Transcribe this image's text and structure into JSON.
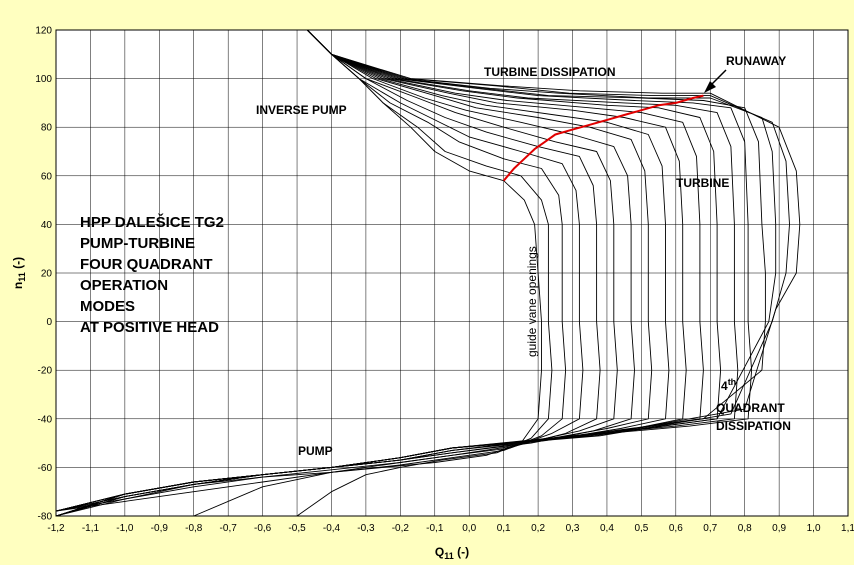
{
  "chart_data": {
    "type": "line",
    "title": "",
    "xlabel": "Q",
    "xlabel_sub": "11",
    "xlabel_unit": " (-)",
    "ylabel": "n",
    "ylabel_sub": "11",
    "ylabel_unit": " (-)",
    "xlim": [
      -1.2,
      1.1
    ],
    "ylim": [
      -80,
      120
    ],
    "grid": true,
    "x_ticks": [
      -1.2,
      -1.1,
      -1.0,
      -0.9,
      -0.8,
      -0.7,
      -0.6,
      -0.5,
      -0.4,
      -0.3,
      -0.2,
      -0.1,
      0.0,
      0.1,
      0.2,
      0.3,
      0.4,
      0.5,
      0.6,
      0.7,
      0.8,
      0.9,
      1.0,
      1.1
    ],
    "x_tick_labels": [
      "-1,2",
      "-1,1",
      "-1,0",
      "-0,9",
      "-0,8",
      "-0,7",
      "-0,6",
      "-0,5",
      "-0,4",
      "-0,3",
      "-0,2",
      "-0,1",
      "0,0",
      "0,1",
      "0,2",
      "0,3",
      "0,4",
      "0,5",
      "0,6",
      "0,7",
      "0,8",
      "0,9",
      "1,0",
      "1,1"
    ],
    "y_ticks": [
      -80,
      -60,
      -40,
      -20,
      0,
      20,
      40,
      60,
      80,
      100,
      120
    ],
    "y_tick_labels": [
      "-80",
      "-60",
      "-40",
      "-20",
      "0",
      "20",
      "40",
      "60",
      "80",
      "100",
      "120"
    ],
    "colors": {
      "background": "#ffffc0",
      "plot": "#ffffff",
      "curve": "#000000",
      "runaway": "#e00000"
    },
    "guide_vane_curves": [
      {
        "x": [
          -0.47,
          -0.4,
          -0.32,
          -0.25,
          -0.17,
          -0.1,
          0.0,
          0.1,
          0.16,
          0.19,
          0.2,
          0.21,
          0.21,
          0.2,
          0.15,
          0.05,
          -0.1,
          -0.25,
          -0.4,
          -0.6,
          -0.8,
          -1.0,
          -1.2
        ],
        "y": [
          120,
          110,
          100,
          90,
          80,
          70,
          62,
          58,
          50,
          40,
          20,
          0,
          -20,
          -40,
          -50,
          -55,
          -58,
          -60,
          -62,
          -64,
          -67,
          -72,
          -80
        ]
      },
      {
        "x": [
          -0.47,
          -0.4,
          -0.32,
          -0.25,
          -0.15,
          -0.07,
          0.05,
          0.15,
          0.21,
          0.23,
          0.23,
          0.23,
          0.24,
          0.23,
          0.18,
          0.08,
          -0.08,
          -0.2,
          -0.3,
          -0.4,
          -0.5
        ],
        "y": [
          120,
          110,
          100,
          90,
          80,
          70,
          64,
          60,
          50,
          40,
          20,
          0,
          -20,
          -40,
          -48,
          -54,
          -57,
          -60,
          -63,
          -70,
          -80
        ]
      },
      {
        "x": [
          -0.47,
          -0.4,
          -0.32,
          -0.23,
          -0.12,
          -0.03,
          0.1,
          0.21,
          0.26,
          0.27,
          0.27,
          0.27,
          0.28,
          0.27,
          0.21,
          0.1,
          -0.05,
          -0.2,
          -0.4,
          -0.6,
          -0.8,
          -1.0,
          -1.2
        ],
        "y": [
          120,
          110,
          100,
          90,
          82,
          74,
          67,
          63,
          52,
          40,
          20,
          0,
          -20,
          -40,
          -47,
          -53,
          -56,
          -59,
          -62,
          -66,
          -70,
          -74,
          -78
        ]
      },
      {
        "x": [
          -0.47,
          -0.4,
          -0.32,
          -0.2,
          -0.1,
          0.0,
          0.15,
          0.27,
          0.31,
          0.32,
          0.32,
          0.32,
          0.33,
          0.32,
          0.24,
          0.12,
          -0.05,
          -0.2,
          -0.4,
          -0.6,
          -0.8
        ],
        "y": [
          120,
          110,
          100,
          90,
          83,
          76,
          70,
          65,
          54,
          40,
          20,
          0,
          -20,
          -40,
          -46,
          -52,
          -55,
          -58,
          -62,
          -68,
          -80
        ]
      },
      {
        "x": [
          -0.47,
          -0.4,
          -0.3,
          -0.18,
          -0.07,
          0.05,
          0.2,
          0.32,
          0.36,
          0.37,
          0.37,
          0.37,
          0.38,
          0.37,
          0.28,
          0.14,
          -0.05,
          -0.2,
          -0.4,
          -0.6,
          -0.8,
          -1.0,
          -1.2
        ],
        "y": [
          120,
          110,
          100,
          91,
          84,
          78,
          72,
          68,
          56,
          40,
          20,
          0,
          -20,
          -40,
          -46,
          -51,
          -55,
          -58,
          -61,
          -64,
          -68,
          -73,
          -78
        ]
      },
      {
        "x": [
          -0.47,
          -0.4,
          -0.3,
          -0.15,
          -0.04,
          0.1,
          0.25,
          0.37,
          0.41,
          0.42,
          0.42,
          0.42,
          0.43,
          0.42,
          0.32,
          0.16,
          -0.05,
          -0.2,
          -0.4,
          -0.6,
          -0.8,
          -1.0,
          -1.2
        ],
        "y": [
          120,
          110,
          100,
          92,
          86,
          80,
          74,
          70,
          58,
          40,
          20,
          0,
          -20,
          -40,
          -45,
          -50,
          -54,
          -57,
          -60,
          -63,
          -67,
          -73,
          -80
        ]
      },
      {
        "x": [
          -0.47,
          -0.4,
          -0.28,
          -0.13,
          -0.01,
          0.15,
          0.3,
          0.42,
          0.46,
          0.47,
          0.47,
          0.47,
          0.48,
          0.47,
          0.36,
          0.18,
          -0.05,
          -0.2,
          -0.4,
          -0.6,
          -0.8,
          -1.0,
          -1.2
        ],
        "y": [
          120,
          110,
          100,
          92,
          87,
          82,
          77,
          72,
          60,
          40,
          20,
          0,
          -20,
          -40,
          -45,
          -50,
          -54,
          -57,
          -60,
          -63,
          -67,
          -72,
          -78
        ]
      },
      {
        "x": [
          -0.47,
          -0.4,
          -0.27,
          -0.1,
          0.02,
          0.2,
          0.35,
          0.47,
          0.51,
          0.52,
          0.52,
          0.52,
          0.53,
          0.52,
          0.4,
          0.2,
          -0.05,
          -0.2,
          -0.4,
          -0.6,
          -0.8,
          -1.0,
          -1.2
        ],
        "y": [
          120,
          110,
          100,
          93,
          88,
          84,
          80,
          75,
          62,
          40,
          20,
          0,
          -20,
          -40,
          -44,
          -49,
          -53,
          -57,
          -60,
          -63,
          -67,
          -72,
          -80
        ]
      },
      {
        "x": [
          -0.47,
          -0.4,
          -0.26,
          -0.08,
          0.05,
          0.25,
          0.4,
          0.52,
          0.56,
          0.57,
          0.57,
          0.57,
          0.58,
          0.57,
          0.44,
          0.22,
          -0.05,
          -0.2,
          -0.4,
          -0.6,
          -0.8,
          -1.0,
          -1.2
        ],
        "y": [
          120,
          110,
          100,
          93,
          89,
          85,
          82,
          77,
          64,
          40,
          20,
          0,
          -20,
          -40,
          -44,
          -49,
          -53,
          -57,
          -60,
          -63,
          -67,
          -72,
          -78
        ]
      },
      {
        "x": [
          -0.47,
          -0.4,
          -0.25,
          -0.06,
          0.08,
          0.3,
          0.45,
          0.57,
          0.61,
          0.62,
          0.62,
          0.62,
          0.63,
          0.62,
          0.48,
          0.24,
          -0.05,
          -0.2,
          -0.4,
          -0.6,
          -0.8,
          -1.0,
          -1.2
        ],
        "y": [
          120,
          110,
          100,
          94,
          90,
          87,
          84,
          80,
          66,
          40,
          20,
          0,
          -20,
          -40,
          -44,
          -48,
          -53,
          -57,
          -60,
          -63,
          -67,
          -72,
          -80
        ]
      },
      {
        "x": [
          -0.47,
          -0.4,
          -0.24,
          -0.04,
          0.11,
          0.35,
          0.5,
          0.62,
          0.66,
          0.67,
          0.67,
          0.67,
          0.68,
          0.67,
          0.52,
          0.26,
          -0.05,
          -0.2,
          -0.4,
          -0.6,
          -0.8,
          -1.0,
          -1.2
        ],
        "y": [
          120,
          110,
          100,
          94,
          91,
          88,
          86,
          82,
          68,
          40,
          20,
          0,
          -20,
          -40,
          -43,
          -48,
          -52,
          -56,
          -60,
          -63,
          -66,
          -71,
          -78
        ]
      },
      {
        "x": [
          -0.47,
          -0.4,
          -0.23,
          -0.02,
          0.14,
          0.4,
          0.55,
          0.67,
          0.71,
          0.72,
          0.72,
          0.72,
          0.73,
          0.72,
          0.56,
          0.28,
          -0.05,
          -0.2,
          -0.4,
          -0.6,
          -0.8,
          -1.0,
          -1.2
        ],
        "y": [
          120,
          110,
          100,
          95,
          92,
          89,
          88,
          84,
          70,
          40,
          20,
          0,
          -20,
          -40,
          -43,
          -48,
          -52,
          -56,
          -60,
          -63,
          -66,
          -71,
          -80
        ]
      },
      {
        "x": [
          -0.47,
          -0.4,
          -0.22,
          0.0,
          0.17,
          0.45,
          0.6,
          0.72,
          0.76,
          0.77,
          0.77,
          0.77,
          0.78,
          0.77,
          0.6,
          0.3,
          -0.05,
          -0.2,
          -0.4,
          -0.6,
          -0.8,
          -1.0,
          -1.2
        ],
        "y": [
          120,
          110,
          100,
          95,
          92,
          90,
          89,
          86,
          72,
          40,
          20,
          0,
          -20,
          -40,
          -43,
          -47,
          -52,
          -56,
          -60,
          -63,
          -66,
          -71,
          -78
        ]
      },
      {
        "x": [
          -0.47,
          -0.4,
          -0.21,
          0.02,
          0.2,
          0.48,
          0.65,
          0.76,
          0.8,
          0.81,
          0.81,
          0.81,
          0.82,
          0.81,
          0.64,
          0.32,
          -0.05,
          -0.2,
          -0.4,
          -0.6,
          -0.8,
          -1.0,
          -1.2
        ],
        "y": [
          120,
          110,
          100,
          96,
          93,
          91,
          90,
          88,
          74,
          40,
          20,
          0,
          -20,
          -40,
          -43,
          -47,
          -52,
          -56,
          -60,
          -63,
          -66,
          -71,
          -80
        ]
      },
      {
        "x": [
          -0.47,
          -0.4,
          -0.2,
          0.04,
          0.23,
          0.5,
          0.68,
          0.8,
          0.84,
          0.85,
          0.86,
          0.86,
          0.85,
          0.68,
          0.34,
          -0.05,
          -0.2,
          -0.4,
          -0.6,
          -0.8,
          -1.0,
          -1.2
        ],
        "y": [
          120,
          110,
          100,
          96,
          93,
          92,
          91,
          88,
          74,
          40,
          20,
          0,
          -20,
          -40,
          -47,
          -52,
          -56,
          -60,
          -63,
          -66,
          -71,
          -78
        ]
      },
      {
        "x": [
          -0.47,
          -0.4,
          -0.19,
          0.06,
          0.26,
          0.52,
          0.7,
          0.85,
          0.88,
          0.89,
          0.89,
          0.87,
          0.72,
          0.36,
          -0.05,
          -0.2,
          -0.4,
          -0.6,
          -0.8,
          -1.0,
          -1.2
        ],
        "y": [
          120,
          110,
          100,
          96,
          94,
          92,
          92,
          84,
          70,
          40,
          20,
          0,
          -40,
          -47,
          -52,
          -56,
          -60,
          -63,
          -66,
          -71,
          -80
        ]
      },
      {
        "x": [
          -0.47,
          -0.4,
          -0.18,
          0.08,
          0.29,
          0.54,
          0.7,
          0.88,
          0.92,
          0.93,
          0.92,
          0.88,
          0.76,
          0.38,
          -0.05,
          -0.2,
          -0.4,
          -0.6,
          -0.8,
          -1.0,
          -1.2
        ],
        "y": [
          120,
          110,
          100,
          97,
          94,
          93,
          93,
          82,
          66,
          40,
          20,
          0,
          -38,
          -47,
          -52,
          -56,
          -60,
          -63,
          -66,
          -71,
          -78
        ]
      },
      {
        "x": [
          -0.47,
          -0.4,
          -0.17,
          0.1,
          0.32,
          0.56,
          0.7,
          0.9,
          0.95,
          0.96,
          0.95,
          0.89,
          0.8,
          0.4,
          -0.05,
          -0.2,
          -0.4,
          -0.6,
          -0.8,
          -1.0,
          -1.2
        ],
        "y": [
          120,
          110,
          100,
          97,
          95,
          94,
          94,
          80,
          62,
          40,
          20,
          5,
          -36,
          -46,
          -52,
          -56,
          -60,
          -63,
          -66,
          -71,
          -80
        ]
      }
    ],
    "runaway_curve": {
      "x": [
        0.1,
        0.13,
        0.16,
        0.19,
        0.22,
        0.25,
        0.3,
        0.35,
        0.4,
        0.45,
        0.5,
        0.55,
        0.6,
        0.65,
        0.68
      ],
      "y": [
        58,
        63,
        67,
        71,
        74,
        77,
        79,
        81,
        83,
        85,
        87,
        89,
        90,
        92,
        93
      ]
    },
    "annotations": {
      "turbine_dissipation": "TURBINE DISSIPATION",
      "runaway": "RUNAWAY",
      "inverse_pump": "INVERSE PUMP",
      "turbine": "TURBINE",
      "pump": "PUMP",
      "guide_vane_openings": "guide vane openings",
      "fourth_quadrant_num": "4",
      "fourth_quadrant_sup": "th",
      "fourth_quadrant_line1": "QUADRANT",
      "fourth_quadrant_line2": "DISSIPATION",
      "title_lines": [
        "HPP DALEŠICE TG2",
        "PUMP-TURBINE",
        "FOUR QUADRANT",
        "OPERATION",
        "MODES",
        "AT POSITIVE HEAD"
      ]
    }
  }
}
